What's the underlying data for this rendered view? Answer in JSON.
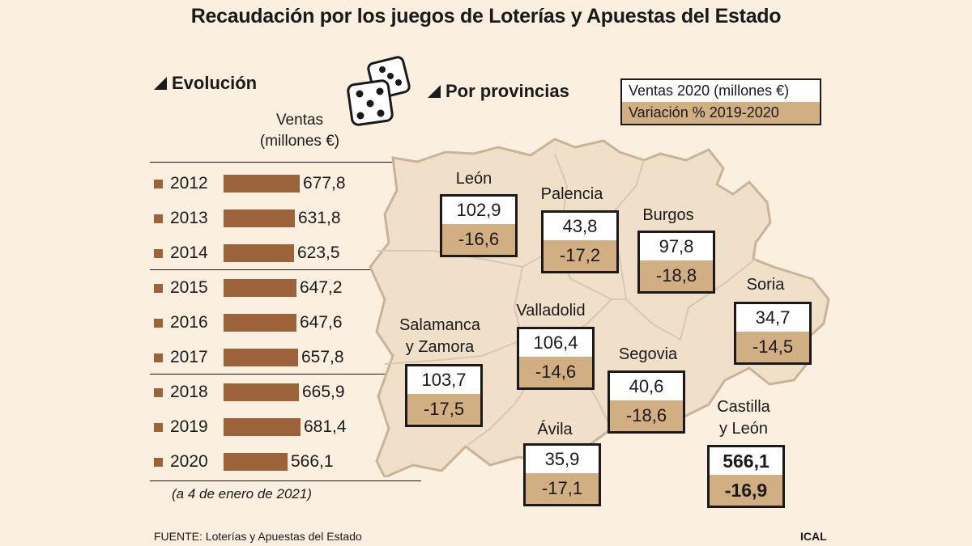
{
  "title": "Recaudación por los juegos de Loterías y Apuestas del Estado",
  "evolucion": {
    "heading": "Evolución",
    "units_line1": "Ventas",
    "units_line2": "(millones €)",
    "note": "(a 4 de enero de 2021)"
  },
  "provincias": {
    "heading": "Por provincias",
    "legend_top": "Ventas 2020 (millones €)",
    "legend_bottom": "Variación % 2019-2020",
    "items": [
      {
        "name": "León",
        "ventas": "102,9",
        "variacion": "-16,6"
      },
      {
        "name": "Palencia",
        "ventas": "43,8",
        "variacion": "-17,2"
      },
      {
        "name": "Burgos",
        "ventas": "97,8",
        "variacion": "-18,8"
      },
      {
        "name": "Soria",
        "ventas": "34,7",
        "variacion": "-14,5"
      },
      {
        "name": "Valladolid",
        "ventas": "106,4",
        "variacion": "-14,6"
      },
      {
        "name_line1": "Salamanca",
        "name_line2": "y Zamora",
        "ventas": "103,7",
        "variacion": "-17,5"
      },
      {
        "name": "Segovia",
        "ventas": "40,6",
        "variacion": "-18,6"
      },
      {
        "name": "Ávila",
        "ventas": "35,9",
        "variacion": "-17,1"
      },
      {
        "name_line1": "Castilla",
        "name_line2": "y León",
        "ventas": "566,1",
        "variacion": "-16,9"
      }
    ]
  },
  "chart_data": {
    "type": "bar",
    "orientation": "horizontal",
    "categories": [
      "2012",
      "2013",
      "2014",
      "2015",
      "2016",
      "2017",
      "2018",
      "2019",
      "2020"
    ],
    "values": [
      677.8,
      631.8,
      623.5,
      647.2,
      647.6,
      657.8,
      665.9,
      681.4,
      566.1
    ],
    "value_labels": [
      "677,8",
      "631,8",
      "623,5",
      "647,2",
      "647,6",
      "657,8",
      "665,9",
      "681,4",
      "566,1"
    ],
    "ylabel": "Ventas (millones €)",
    "bar_color": "#9c6239"
  },
  "colors": {
    "background": "#fbf0df",
    "map_fill": "#f0dfc9",
    "bar": "#9c6239",
    "variation_fill": "#d2ae83"
  },
  "icons": [
    "dice-icon",
    "triangle-bullet-icon"
  ],
  "footer": {
    "source": "FUENTE: Loterías y Apuestas del Estado",
    "credit": "ICAL"
  }
}
